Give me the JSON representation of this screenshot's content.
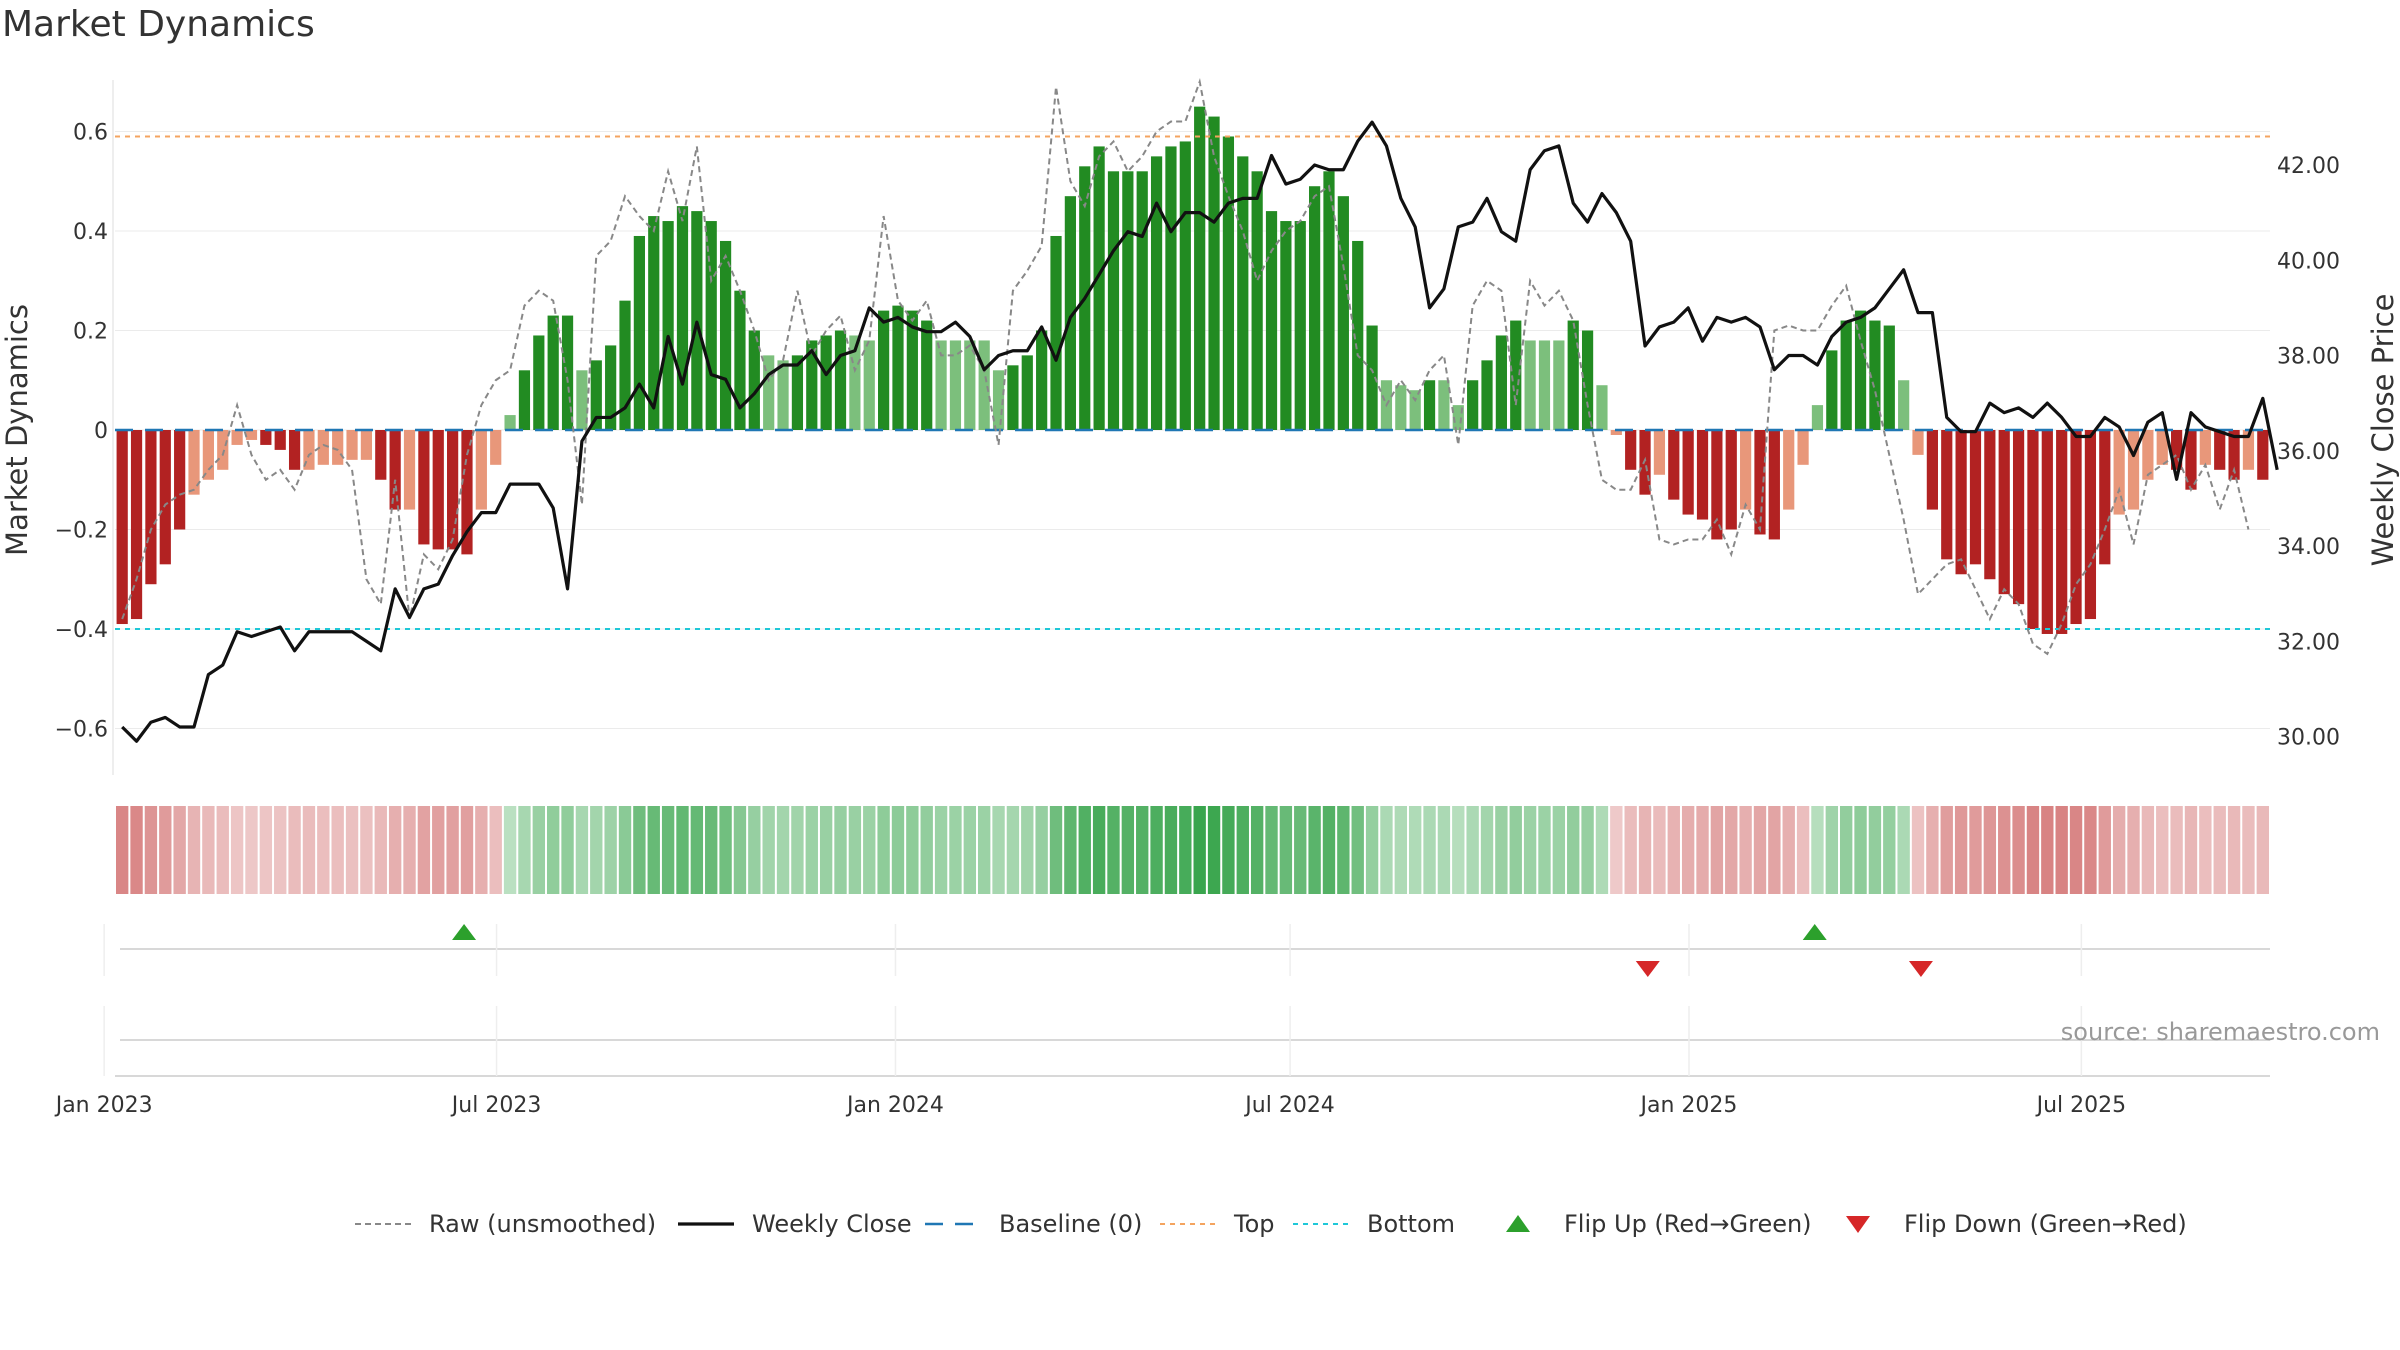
{
  "title": "Market Dynamics",
  "source": "source: sharemaestro.com",
  "colors": {
    "strong_green": "#228b22",
    "light_green": "#7cbf7c",
    "strong_red": "#b22222",
    "light_red": "#e8977a",
    "weekly_close": "#111111",
    "raw": "#888888",
    "baseline": "#1f77b4",
    "top": "#f4a460",
    "bottom": "#1ec8d8",
    "flip_up": "#2ca02c",
    "flip_down": "#d62728"
  },
  "chart_data": {
    "type": "bar",
    "x_axis": {
      "start": "2023-01-06",
      "end": "2025-09-26",
      "ticks": [
        {
          "date": "2023-01-01",
          "label": "Jan 2023"
        },
        {
          "date": "2023-07-01",
          "label": "Jul 2023"
        },
        {
          "date": "2024-01-01",
          "label": "Jan 2024"
        },
        {
          "date": "2024-07-01",
          "label": "Jul 2024"
        },
        {
          "date": "2025-01-01",
          "label": "Jan 2025"
        },
        {
          "date": "2025-07-01",
          "label": "Jul 2025"
        }
      ]
    },
    "left_axis": {
      "label": "Market Dynamics",
      "range": [
        -0.7,
        0.7
      ],
      "ticks": [
        {
          "v": -0.6,
          "label": "−0.6"
        },
        {
          "v": -0.4,
          "label": "−0.4"
        },
        {
          "v": -0.2,
          "label": "−0.2"
        },
        {
          "v": 0,
          "label": "0"
        },
        {
          "v": 0.2,
          "label": "0.2"
        },
        {
          "v": 0.4,
          "label": "0.4"
        },
        {
          "v": 0.6,
          "label": "0.6"
        }
      ]
    },
    "right_axis": {
      "label": "Weekly Close Price",
      "range": [
        29.2,
        43.6
      ],
      "ticks": [
        {
          "v": 30,
          "label": "30.00"
        },
        {
          "v": 32,
          "label": "32.00"
        },
        {
          "v": 34,
          "label": "34.00"
        },
        {
          "v": 36,
          "label": "36.00"
        },
        {
          "v": 38,
          "label": "38.00"
        },
        {
          "v": 40,
          "label": "40.00"
        },
        {
          "v": 42,
          "label": "42.00"
        }
      ]
    },
    "reference_lines": {
      "baseline": 0,
      "top": 0.59,
      "bottom": -0.4
    },
    "series": [
      {
        "name": "Market Dynamics (smoothed)",
        "kind": "bar",
        "values": [
          -0.39,
          -0.38,
          -0.31,
          -0.27,
          -0.2,
          -0.13,
          -0.1,
          -0.08,
          -0.03,
          -0.02,
          -0.03,
          -0.04,
          -0.08,
          -0.08,
          -0.07,
          -0.07,
          -0.06,
          -0.06,
          -0.1,
          -0.16,
          -0.16,
          -0.23,
          -0.24,
          -0.24,
          -0.25,
          -0.16,
          -0.07,
          0.03,
          0.12,
          0.19,
          0.23,
          0.23,
          0.12,
          0.14,
          0.17,
          0.26,
          0.39,
          0.43,
          0.42,
          0.45,
          0.44,
          0.42,
          0.38,
          0.28,
          0.2,
          0.15,
          0.14,
          0.15,
          0.18,
          0.19,
          0.2,
          0.19,
          0.18,
          0.24,
          0.25,
          0.24,
          0.22,
          0.18,
          0.18,
          0.18,
          0.18,
          0.12,
          0.13,
          0.15,
          0.2,
          0.39,
          0.47,
          0.53,
          0.57,
          0.52,
          0.52,
          0.52,
          0.55,
          0.57,
          0.58,
          0.65,
          0.63,
          0.59,
          0.55,
          0.52,
          0.44,
          0.42,
          0.42,
          0.49,
          0.52,
          0.47,
          0.38,
          0.21,
          0.1,
          0.09,
          0.08,
          0.1,
          0.1,
          0.05,
          0.1,
          0.14,
          0.19,
          0.22,
          0.18,
          0.18,
          0.18,
          0.22,
          0.2,
          0.09,
          -0.01,
          -0.08,
          -0.13,
          -0.09,
          -0.14,
          -0.17,
          -0.18,
          -0.22,
          -0.2,
          -0.16,
          -0.21,
          -0.22,
          -0.16,
          -0.07,
          0.05,
          0.16,
          0.22,
          0.24,
          0.22,
          0.21,
          0.1,
          -0.05,
          -0.16,
          -0.26,
          -0.29,
          -0.27,
          -0.3,
          -0.33,
          -0.35,
          -0.4,
          -0.41,
          -0.41,
          -0.39,
          -0.38,
          -0.27,
          -0.17,
          -0.16,
          -0.1,
          -0.07,
          -0.08,
          -0.12,
          -0.07,
          -0.08,
          -0.1,
          -0.08,
          -0.1
        ]
      },
      {
        "name": "Raw (unsmoothed)",
        "kind": "line",
        "values": [
          -0.38,
          -0.3,
          -0.2,
          -0.15,
          -0.13,
          -0.12,
          -0.08,
          -0.05,
          0.05,
          -0.05,
          -0.1,
          -0.08,
          -0.12,
          -0.05,
          -0.03,
          -0.04,
          -0.08,
          -0.3,
          -0.35,
          -0.1,
          -0.38,
          -0.25,
          -0.28,
          -0.22,
          -0.05,
          0.05,
          0.1,
          0.12,
          0.25,
          0.28,
          0.26,
          0.1,
          -0.15,
          0.35,
          0.38,
          0.47,
          0.43,
          0.4,
          0.52,
          0.42,
          0.57,
          0.3,
          0.35,
          0.28,
          0.2,
          0.1,
          0.14,
          0.28,
          0.15,
          0.2,
          0.23,
          0.12,
          0.18,
          0.43,
          0.26,
          0.22,
          0.26,
          0.15,
          0.15,
          0.17,
          0.12,
          -0.03,
          0.28,
          0.32,
          0.37,
          0.69,
          0.5,
          0.45,
          0.55,
          0.58,
          0.52,
          0.55,
          0.6,
          0.62,
          0.62,
          0.7,
          0.55,
          0.47,
          0.4,
          0.3,
          0.36,
          0.4,
          0.42,
          0.47,
          0.49,
          0.33,
          0.15,
          0.12,
          0.05,
          0.1,
          0.06,
          0.12,
          0.15,
          -0.03,
          0.25,
          0.3,
          0.28,
          0.05,
          0.3,
          0.25,
          0.28,
          0.22,
          0.05,
          -0.1,
          -0.12,
          -0.12,
          -0.06,
          -0.22,
          -0.23,
          -0.22,
          -0.22,
          -0.18,
          -0.25,
          -0.15,
          -0.2,
          0.2,
          0.21,
          0.2,
          0.2,
          0.25,
          0.29,
          0.18,
          0.08,
          -0.05,
          -0.18,
          -0.33,
          -0.3,
          -0.27,
          -0.26,
          -0.32,
          -0.38,
          -0.32,
          -0.35,
          -0.43,
          -0.45,
          -0.39,
          -0.31,
          -0.27,
          -0.2,
          -0.12,
          -0.23,
          -0.09,
          -0.07,
          -0.05,
          -0.12,
          -0.07,
          -0.16,
          -0.08,
          -0.2
        ]
      },
      {
        "name": "Weekly Close",
        "kind": "line",
        "axis": "right",
        "values": [
          30.2,
          29.9,
          30.3,
          30.4,
          30.2,
          30.2,
          31.3,
          31.5,
          32.2,
          32.1,
          32.2,
          32.3,
          31.8,
          32.2,
          32.2,
          32.2,
          32.2,
          32.0,
          31.8,
          33.1,
          32.5,
          33.1,
          33.2,
          33.8,
          34.3,
          34.7,
          34.7,
          35.3,
          35.3,
          35.3,
          34.8,
          33.1,
          36.2,
          36.7,
          36.7,
          36.9,
          37.4,
          36.9,
          38.4,
          37.4,
          38.7,
          37.6,
          37.5,
          36.9,
          37.2,
          37.6,
          37.8,
          37.8,
          38.1,
          37.6,
          38.0,
          38.1,
          39.0,
          38.7,
          38.8,
          38.6,
          38.5,
          38.5,
          38.7,
          38.4,
          37.7,
          38.0,
          38.1,
          38.1,
          38.6,
          37.9,
          38.8,
          39.2,
          39.7,
          40.2,
          40.6,
          40.5,
          41.2,
          40.6,
          41.0,
          41.0,
          40.8,
          41.2,
          41.3,
          41.3,
          42.2,
          41.6,
          41.7,
          42.0,
          41.9,
          41.9,
          42.5,
          42.9,
          42.4,
          41.3,
          40.7,
          39.0,
          39.4,
          40.7,
          40.8,
          41.3,
          40.6,
          40.4,
          41.9,
          42.3,
          42.4,
          41.2,
          40.8,
          41.4,
          41.0,
          40.4,
          38.2,
          38.6,
          38.7,
          39.0,
          38.3,
          38.8,
          38.7,
          38.8,
          38.6,
          37.7,
          38.0,
          38.0,
          37.8,
          38.4,
          38.7,
          38.8,
          39.0,
          39.4,
          39.8,
          38.9,
          38.9,
          36.7,
          36.4,
          36.4,
          37.0,
          36.8,
          36.9,
          36.7,
          37.0,
          36.7,
          36.3,
          36.3,
          36.7,
          36.5,
          35.9,
          36.6,
          36.8,
          35.4,
          36.8,
          36.5,
          36.4,
          36.3,
          36.3,
          37.1,
          35.6
        ]
      }
    ],
    "state_strip_note": "color intensity follows smoothed value",
    "flips": [
      {
        "type": "up",
        "date": "2023-06-16"
      },
      {
        "type": "down",
        "date": "2024-12-13"
      },
      {
        "type": "up",
        "date": "2025-02-28"
      },
      {
        "type": "down",
        "date": "2025-04-18"
      }
    ],
    "legend": [
      {
        "label": "Raw (unsmoothed)",
        "kind": "raw"
      },
      {
        "label": "Weekly Close",
        "kind": "close"
      },
      {
        "label": "Baseline (0)",
        "kind": "baseline"
      },
      {
        "label": "Top",
        "kind": "top"
      },
      {
        "label": "Bottom",
        "kind": "bottom"
      },
      {
        "label": "Flip Up (Red→Green)",
        "kind": "flipup"
      },
      {
        "label": "Flip Down (Green→Red)",
        "kind": "flipdown"
      }
    ]
  }
}
